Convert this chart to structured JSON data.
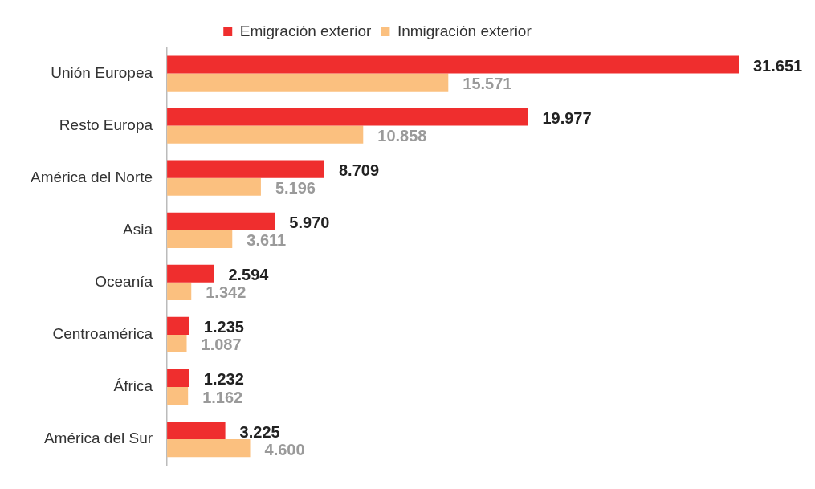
{
  "chart_data": {
    "type": "bar",
    "orientation": "horizontal",
    "legend": "top",
    "categories": [
      "Unión Europea",
      "Resto Europa",
      "América del Norte",
      "Asia",
      "Oceanía",
      "Centroamérica",
      "África",
      "América del Sur"
    ],
    "series": [
      {
        "name": "Emigración exterior",
        "color": "#ef2e2e",
        "values": [
          31651,
          19977,
          8709,
          5970,
          2594,
          1235,
          1232,
          3225
        ],
        "value_labels": [
          "31.651",
          "19.977",
          "8.709",
          "5.970",
          "2.594",
          "1.235",
          "1.232",
          "3.225"
        ]
      },
      {
        "name": "Inmigración exterior",
        "color": "#fbc07f",
        "values": [
          15571,
          10858,
          5196,
          3611,
          1342,
          1087,
          1162,
          4600
        ],
        "value_labels": [
          "15.571",
          "10.858",
          "5.196",
          "3.611",
          "1.342",
          "1.087",
          "1.162",
          "4.600"
        ]
      }
    ]
  }
}
